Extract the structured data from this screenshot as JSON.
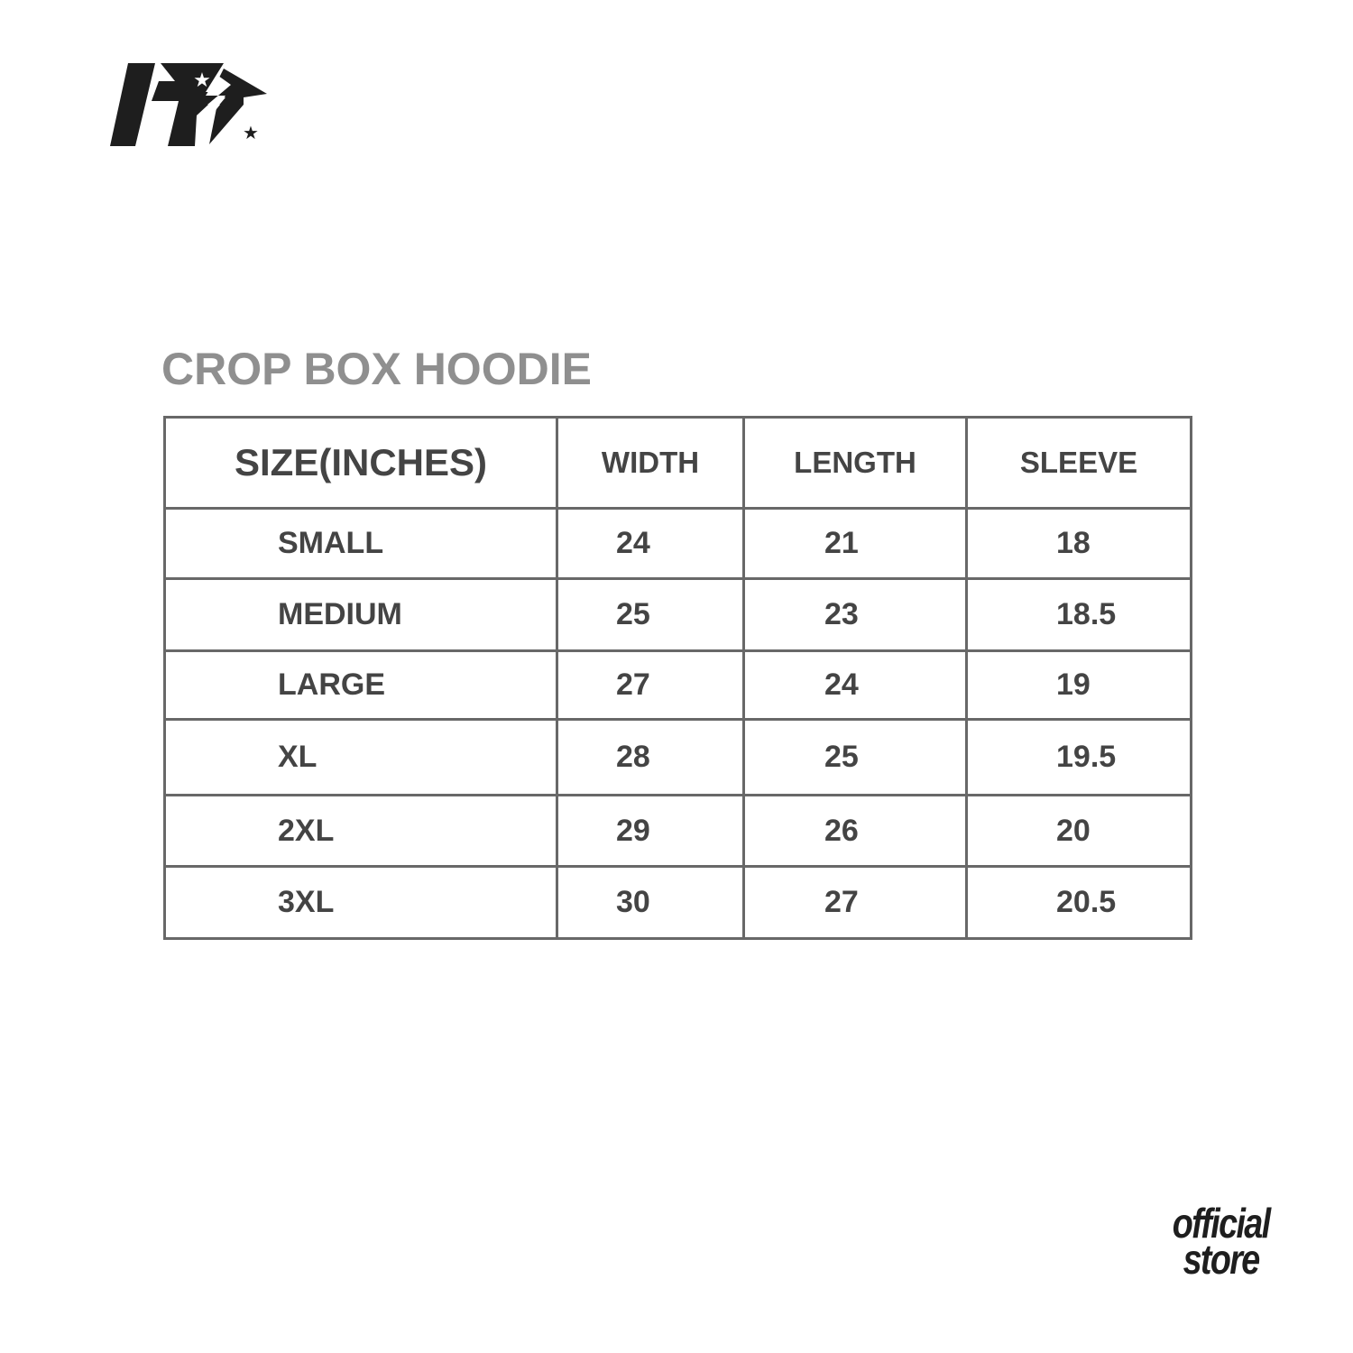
{
  "brand": {
    "logo_icon": "lightning-star-logo",
    "store_mark": [
      "official",
      "store"
    ]
  },
  "title": "CROP BOX HOODIE",
  "table": {
    "headers": [
      "SIZE(INCHES)",
      "WIDTH",
      "LENGTH",
      "SLEEVE"
    ],
    "rows": [
      [
        "SMALL",
        "24",
        "21",
        "18"
      ],
      [
        "MEDIUM",
        "25",
        "23",
        "18.5"
      ],
      [
        "LARGE",
        "27",
        "24",
        "19"
      ],
      [
        "XL",
        "28",
        "25",
        "19.5"
      ],
      [
        "2XL",
        "29",
        "26",
        "20"
      ],
      [
        "3XL",
        "30",
        "27",
        "20.5"
      ]
    ]
  },
  "colors": {
    "text": "#444444",
    "title": "#8f8f8f",
    "border": "#686868",
    "logo": "#1e1e1e"
  }
}
